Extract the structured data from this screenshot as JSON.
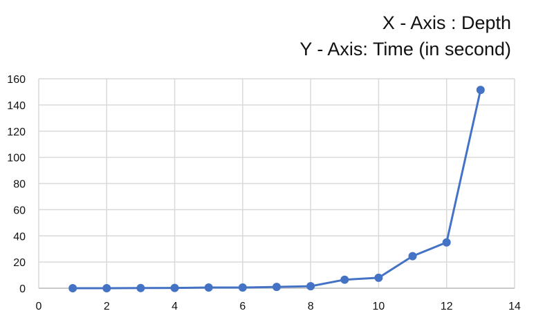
{
  "chart_data": {
    "type": "line",
    "title_lines": [
      "X - Axis : Depth",
      "Y - Axis: Time (in second)"
    ],
    "xlabel": "",
    "ylabel": "",
    "xlim": [
      0,
      14
    ],
    "ylim": [
      0,
      160
    ],
    "x_ticks": [
      0,
      2,
      4,
      6,
      8,
      10,
      12,
      14
    ],
    "y_ticks": [
      0,
      20,
      40,
      60,
      80,
      100,
      120,
      140,
      160
    ],
    "grid": true,
    "line_color": "#4472C4",
    "series": [
      {
        "x": [
          1,
          2,
          3,
          4,
          5,
          6,
          7,
          8,
          9,
          10,
          11,
          12,
          13
        ],
        "values": [
          0,
          0,
          0.1,
          0.2,
          0.5,
          0.5,
          1,
          1.5,
          6.5,
          8,
          24.5,
          35,
          151.5
        ]
      }
    ]
  }
}
